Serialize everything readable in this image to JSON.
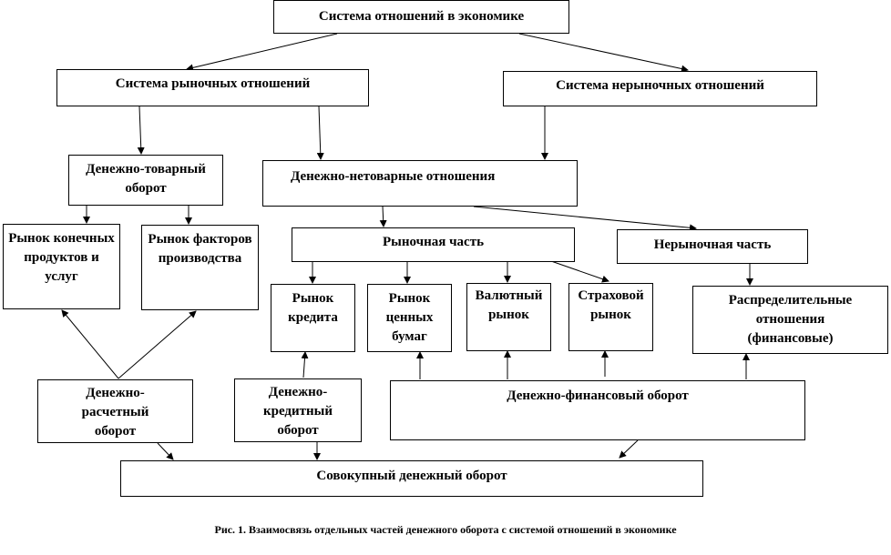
{
  "nodes": {
    "system": "Система отношений в экономике",
    "market_system": "Система рыночных отношений",
    "nonmarket_system": "Система нерыночных отношений",
    "money_commodity": "Денежно-товарный оборот",
    "money_noncommodity": "Денежно-нетоварные отношения",
    "final_products_market": "Рынок конечных продуктов и услуг",
    "factors_market": "Рынок факторов производства",
    "market_part": "Рыночная часть",
    "nonmarket_part": "Нерыночная часть",
    "credit_market": "Рынок кредита",
    "securities_market": "Рынок ценных бумаг",
    "currency_market": "Валютный рынок",
    "insurance_market": "Страховой рынок",
    "distribution": "Распределительные отношения (финансовые)",
    "settlement_turnover": "Денежно-расчетный оборот",
    "credit_turnover": "Денежно-кредитный оборот",
    "financial_turnover": "Денежно-финансовый оборот",
    "total_turnover": "Совокупный денежный оборот"
  },
  "caption": "Рис. 1. Взаимосвязь отдельных частей денежного оборота с системой отношений в экономике"
}
